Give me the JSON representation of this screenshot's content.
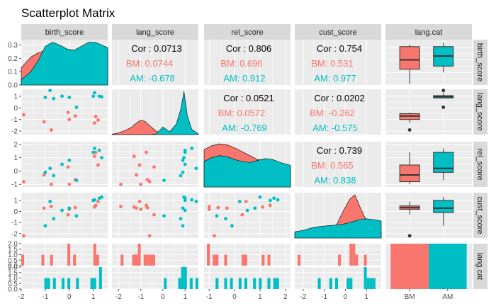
{
  "title": "Scatterplot Matrix",
  "variables": [
    "birth_score",
    "lang_score",
    "rel_score",
    "cust_score",
    "lang.cat"
  ],
  "groups": [
    "BM",
    "AM"
  ],
  "colors": {
    "BM": "#F8766D",
    "AM": "#00BFC4",
    "panel": "#EBEBEB",
    "strip": "#D9D9D9",
    "grid": "#FFFFFF",
    "text": "#1A1A1A",
    "axis": "#4D4D4D"
  },
  "chart_data": {
    "type": "scatter",
    "subtype": "scatterplot-matrix",
    "columns": [
      "birth_score",
      "lang_score",
      "rel_score",
      "cust_score",
      "lang.cat"
    ],
    "rows": [
      "birth_score",
      "lang_score",
      "rel_score",
      "cust_score",
      "lang.cat"
    ],
    "legend": "none",
    "grid": true,
    "ranges": {
      "birth_score": [
        -2,
        1.6
      ],
      "lang_score": [
        -2.3,
        1.6
      ],
      "rel_score": [
        -1.2,
        2.2
      ],
      "cust_score": [
        -2.4,
        1.7
      ]
    },
    "ticks": {
      "birth_score": [
        "-2",
        "-1",
        "0",
        "1"
      ],
      "lang_score": [
        "-2",
        "-1",
        "0",
        "1"
      ],
      "rel_score": [
        "-1",
        "0",
        "1",
        "2"
      ],
      "cust_score": [
        "-2",
        "-1",
        "0",
        "1"
      ],
      "density": [
        "0.0",
        "0.1",
        "0.2",
        "0.3"
      ],
      "lang.cat": [
        "BM",
        "AM"
      ],
      "count": [
        "0.0",
        "0.5",
        "1.0",
        "1.5",
        "2.0"
      ]
    },
    "density_ylim": [
      0,
      0.34
    ],
    "count_ylim": [
      0,
      2
    ],
    "correlations": [
      {
        "row": "birth_score",
        "col": "lang_score",
        "overall": "Cor : 0.0713",
        "BM": "BM: 0.0744",
        "AM": "AM: -0.678"
      },
      {
        "row": "birth_score",
        "col": "rel_score",
        "overall": "Cor : 0.806",
        "BM": "BM: 0.696",
        "AM": "AM: 0.912"
      },
      {
        "row": "birth_score",
        "col": "cust_score",
        "overall": "Cor : 0.754",
        "BM": "BM: 0.531",
        "AM": "AM: 0.977"
      },
      {
        "row": "lang_score",
        "col": "rel_score",
        "overall": "Cor : 0.0521",
        "BM": "BM: 0.0572",
        "AM": "AM: -0.769"
      },
      {
        "row": "lang_score",
        "col": "cust_score",
        "overall": "Cor : 0.0202",
        "BM": "BM: -0.262",
        "AM": "AM: -0.575"
      },
      {
        "row": "rel_score",
        "col": "cust_score",
        "overall": "Cor : 0.739",
        "BM": "BM: 0.565",
        "AM": "AM: 0.838"
      }
    ],
    "points": [
      {
        "group": "BM",
        "birth_score": -1.9,
        "lang_score": -0.6,
        "rel_score": -0.8,
        "cust_score": -2.2
      },
      {
        "group": "BM",
        "birth_score": -1.05,
        "lang_score": -1.2,
        "rel_score": -0.3,
        "cust_score": 0.3
      },
      {
        "group": "BM",
        "birth_score": -0.75,
        "lang_score": -1.9,
        "rel_score": -1.0,
        "cust_score": 0.45
      },
      {
        "group": "BM",
        "birth_score": -0.05,
        "lang_score": -0.4,
        "rel_score": 0.3,
        "cust_score": -0.3
      },
      {
        "group": "BM",
        "birth_score": 0.0,
        "lang_score": -1.0,
        "rel_score": -1.0,
        "cust_score": 0.2
      },
      {
        "group": "BM",
        "birth_score": 0.25,
        "lang_score": -0.7,
        "rel_score": -0.65,
        "cust_score": 0.35
      },
      {
        "group": "BM",
        "birth_score": 1.05,
        "lang_score": -1.3,
        "rel_score": 1.1,
        "cust_score": 0.4
      },
      {
        "group": "BM",
        "birth_score": 1.1,
        "lang_score": -0.75,
        "rel_score": 1.4,
        "cust_score": 0.55
      },
      {
        "group": "BM",
        "birth_score": 1.2,
        "lang_score": -1.05,
        "rel_score": 0.45,
        "cust_score": 0.9
      },
      {
        "group": "AM",
        "birth_score": -1.0,
        "lang_score": 0.9,
        "rel_score": -0.1,
        "cust_score": -1.3
      },
      {
        "group": "AM",
        "birth_score": -0.8,
        "lang_score": 1.5,
        "rel_score": 0.2,
        "cust_score": 0.9
      },
      {
        "group": "AM",
        "birth_score": -0.65,
        "lang_score": 0.8,
        "rel_score": -0.35,
        "cust_score": -0.65
      },
      {
        "group": "AM",
        "birth_score": -0.3,
        "lang_score": 1.0,
        "rel_score": 0.5,
        "cust_score": 0.1
      },
      {
        "group": "AM",
        "birth_score": 0.0,
        "lang_score": 0.9,
        "rel_score": 0.8,
        "cust_score": 0.3
      },
      {
        "group": "AM",
        "birth_score": 0.3,
        "lang_score": 0.05,
        "rel_score": -0.7,
        "cust_score": -0.4
      },
      {
        "group": "AM",
        "birth_score": 1.0,
        "lang_score": 1.0,
        "rel_score": 1.4,
        "cust_score": 1.0
      },
      {
        "group": "AM",
        "birth_score": 1.05,
        "lang_score": 1.3,
        "rel_score": 1.7,
        "cust_score": 1.05
      },
      {
        "group": "AM",
        "birth_score": 1.25,
        "lang_score": 1.0,
        "rel_score": 1.55,
        "cust_score": 1.2
      },
      {
        "group": "AM",
        "birth_score": 1.35,
        "lang_score": 0.95,
        "rel_score": 1.0,
        "cust_score": 1.3
      }
    ],
    "densities": {
      "birth_score": {
        "x": [
          -2.0,
          -1.6,
          -1.3,
          -1.0,
          -0.7,
          -0.4,
          -0.1,
          0.2,
          0.5,
          0.8,
          1.1,
          1.35,
          1.6
        ],
        "BM": [
          0.13,
          0.21,
          0.24,
          0.26,
          0.25,
          0.23,
          0.22,
          0.24,
          0.27,
          0.29,
          0.31,
          0.29,
          0.25
        ],
        "AM": [
          0.04,
          0.1,
          0.18,
          0.29,
          0.32,
          0.3,
          0.27,
          0.26,
          0.29,
          0.32,
          0.32,
          0.3,
          0.28
        ]
      },
      "lang_score": {
        "x": [
          -2.3,
          -2.0,
          -1.7,
          -1.4,
          -1.2,
          -1.0,
          -0.8,
          -0.6,
          -0.3,
          0.0,
          0.3,
          0.6,
          0.8,
          0.95,
          1.1,
          1.3,
          1.6
        ],
        "BM": [
          0.01,
          0.05,
          0.12,
          0.22,
          0.33,
          0.42,
          0.38,
          0.26,
          0.1,
          0.02,
          0.01,
          0.0,
          0.0,
          0.0,
          0.0,
          0.0,
          0.0
        ],
        "AM": [
          0.0,
          0.0,
          0.0,
          0.0,
          0.0,
          0.0,
          0.0,
          0.0,
          0.02,
          0.22,
          0.08,
          0.3,
          0.72,
          1.25,
          0.55,
          0.15,
          0.02
        ]
      },
      "rel_score": {
        "x": [
          -1.2,
          -0.9,
          -0.6,
          -0.3,
          0.0,
          0.3,
          0.6,
          0.9,
          1.2,
          1.5,
          1.8,
          2.2
        ],
        "BM": [
          0.38,
          0.42,
          0.44,
          0.43,
          0.4,
          0.36,
          0.32,
          0.28,
          0.27,
          0.25,
          0.22,
          0.2
        ],
        "AM": [
          0.26,
          0.3,
          0.32,
          0.31,
          0.28,
          0.26,
          0.25,
          0.27,
          0.29,
          0.28,
          0.25,
          0.22
        ]
      },
      "cust_score": {
        "x": [
          -2.4,
          -2.0,
          -1.6,
          -1.2,
          -0.8,
          -0.4,
          -0.1,
          0.2,
          0.45,
          0.7,
          1.0,
          1.3,
          1.7
        ],
        "BM": [
          0.02,
          0.04,
          0.06,
          0.08,
          0.1,
          0.18,
          0.35,
          0.5,
          0.56,
          0.4,
          0.22,
          0.12,
          0.08
        ],
        "AM": [
          0.08,
          0.1,
          0.13,
          0.15,
          0.16,
          0.17,
          0.18,
          0.2,
          0.22,
          0.24,
          0.25,
          0.24,
          0.22
        ]
      }
    },
    "boxplots": {
      "birth_score": {
        "BM": {
          "min": -1.9,
          "q1": -0.75,
          "median": 0.0,
          "q3": 1.05,
          "max": 1.2,
          "outliers": []
        },
        "AM": {
          "min": -1.0,
          "q1": -0.5,
          "median": 0.3,
          "q3": 1.05,
          "max": 1.35,
          "outliers": []
        }
      },
      "lang_score": {
        "BM": {
          "min": -1.3,
          "q1": -1.0,
          "median": -0.7,
          "q3": -0.5,
          "max": -0.4,
          "outliers": [
            -1.9
          ]
        },
        "AM": {
          "min": 0.8,
          "q1": 0.85,
          "median": 0.95,
          "q3": 1.05,
          "max": 1.3,
          "outliers": [
            1.5,
            0.05
          ]
        }
      },
      "rel_score": {
        "BM": {
          "min": -1.0,
          "q1": -0.8,
          "median": -0.3,
          "q3": 0.45,
          "max": 1.4,
          "outliers": []
        },
        "AM": {
          "min": -0.7,
          "q1": -0.1,
          "median": 0.2,
          "q3": 1.4,
          "max": 1.7,
          "outliers": []
        }
      },
      "cust_score": {
        "BM": {
          "min": -0.3,
          "q1": 0.2,
          "median": 0.35,
          "q3": 0.5,
          "max": 0.9,
          "outliers": [
            -2.2
          ]
        },
        "AM": {
          "min": -1.3,
          "q1": -0.1,
          "median": 0.3,
          "q3": 1.0,
          "max": 1.3,
          "outliers": []
        }
      }
    },
    "category_counts": {
      "BM": 2,
      "AM": 2
    },
    "histograms": {
      "birth_score": {
        "BM": [
          -1.9,
          -1.05,
          -0.75,
          -0.05,
          0.0,
          0.25,
          1.05,
          1.1,
          1.2
        ],
        "AM": [
          -1.0,
          -0.8,
          -0.65,
          -0.3,
          0.0,
          0.3,
          1.0,
          1.05,
          1.25,
          1.35
        ]
      },
      "lang_score": {
        "BM": [
          -1.9,
          -1.3,
          -1.2,
          -1.05,
          -1.0,
          -0.75,
          -0.7,
          -0.6,
          -0.4
        ],
        "AM": [
          0.05,
          0.8,
          0.9,
          0.9,
          0.95,
          1.0,
          1.0,
          1.0,
          1.3,
          1.5
        ]
      },
      "rel_score": {
        "BM": [
          -1.0,
          -1.0,
          -0.8,
          -0.65,
          -0.3,
          0.3,
          0.45,
          1.1,
          1.4
        ],
        "AM": [
          -0.7,
          -0.35,
          -0.1,
          0.2,
          0.5,
          0.8,
          1.0,
          1.4,
          1.55,
          1.7
        ]
      },
      "cust_score": {
        "BM": [
          -2.2,
          -0.3,
          0.2,
          0.3,
          0.35,
          0.4,
          0.45,
          0.55,
          0.9
        ],
        "AM": [
          -1.3,
          -0.65,
          -0.4,
          0.1,
          0.3,
          0.9,
          1.0,
          1.05,
          1.2,
          1.3
        ]
      }
    }
  }
}
